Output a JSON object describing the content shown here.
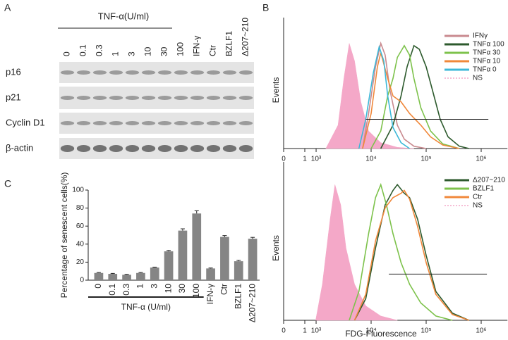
{
  "panels": {
    "a": "A",
    "b": "B",
    "c": "C"
  },
  "blot": {
    "group_label": "TNF-α(U/ml)",
    "lanes": [
      "0",
      "0.1",
      "0.3",
      "1",
      "3",
      "10",
      "30",
      "100",
      "IFN-γ",
      "Ctr",
      "BZLF1",
      "Δ207~210"
    ],
    "rows": [
      "p16",
      "p21",
      "Cyclin D1",
      "β-actin"
    ]
  },
  "chart_data": [
    {
      "type": "bar",
      "ylabel": "Percentage of senescent cells(%)",
      "group_label": "TNF-α (U/ml)",
      "categories": [
        "0",
        "0.1",
        "0.3",
        "1",
        "3",
        "10",
        "30",
        "100",
        "IFN-γ",
        "Ctr",
        "BZLF1",
        "Δ207~210"
      ],
      "values": [
        8,
        7,
        6,
        8,
        14,
        32,
        55,
        74,
        13,
        48,
        21,
        46
      ],
      "errors": [
        0.5,
        0.5,
        0.5,
        0.5,
        0.5,
        1,
        2,
        3,
        0.5,
        1.5,
        1,
        1.5
      ],
      "color": "#858585",
      "ylim": [
        0,
        100
      ],
      "yticks": [
        0,
        20,
        40,
        60,
        80,
        100
      ]
    },
    {
      "type": "line",
      "ylabel": "Events",
      "xscale": "biexponential",
      "xlim": [
        0,
        3000000
      ],
      "ylim": [
        0,
        100
      ],
      "xticks": [
        0,
        1,
        {
          "value": 1000,
          "label": "10³"
        },
        {
          "value": 10000,
          "label": "10⁴"
        },
        {
          "value": 100000,
          "label": "10⁵"
        },
        {
          "value": 1000000,
          "label": "10⁶"
        }
      ],
      "gate": {
        "x": [
          8000,
          1350000
        ],
        "y": 25
      },
      "series": [
        {
          "name": "IFNγ",
          "color": "#c98a8f",
          "x": [
            7000,
            9000,
            12000,
            15000,
            18000,
            22000,
            30000,
            40000,
            60000,
            100000
          ],
          "values": [
            0,
            30,
            70,
            90,
            80,
            50,
            20,
            8,
            2,
            0
          ]
        },
        {
          "name": "TNFα 100",
          "color": "#2d5a2d",
          "x": [
            15000,
            25000,
            35000,
            45000,
            60000,
            75000,
            100000,
            130000,
            180000,
            250000,
            400000,
            600000
          ],
          "values": [
            0,
            20,
            45,
            70,
            88,
            85,
            70,
            50,
            25,
            10,
            2,
            0
          ]
        },
        {
          "name": "TNFα 30",
          "color": "#7dc24b",
          "x": [
            10000,
            15000,
            20000,
            25000,
            30000,
            40000,
            50000,
            60000,
            80000,
            120000,
            200000,
            400000
          ],
          "values": [
            0,
            15,
            45,
            60,
            78,
            88,
            80,
            60,
            35,
            15,
            4,
            0
          ]
        },
        {
          "name": "TNFα 10",
          "color": "#f0883b",
          "x": [
            7000,
            10000,
            13000,
            15000,
            20000,
            25000,
            35000,
            50000,
            80000,
            120000,
            200000,
            400000
          ],
          "values": [
            0,
            30,
            70,
            82,
            60,
            45,
            40,
            30,
            20,
            10,
            3,
            0
          ]
        },
        {
          "name": "TNFα 0",
          "color": "#3cb8d8",
          "x": [
            6000,
            8000,
            11000,
            14000,
            17000,
            20000,
            25000,
            35000,
            50000
          ],
          "values": [
            0,
            25,
            65,
            87,
            75,
            45,
            18,
            5,
            0
          ]
        },
        {
          "name": "NS",
          "color": "#f4a8c8",
          "fill": true,
          "x": [
            1500,
            2500,
            3200,
            4000,
            5000,
            6500,
            9000,
            15000,
            30000,
            60000
          ],
          "values": [
            0,
            20,
            60,
            90,
            75,
            40,
            15,
            5,
            1,
            0
          ]
        }
      ]
    },
    {
      "type": "line",
      "ylabel": "Events",
      "xlabel": "FDG-Fluorescence",
      "xscale": "biexponential",
      "xlim": [
        0,
        3000000
      ],
      "ylim": [
        0,
        100
      ],
      "xticks": [
        0,
        1,
        {
          "value": 1000,
          "label": "10³"
        },
        {
          "value": 10000,
          "label": "10⁴"
        },
        {
          "value": 100000,
          "label": "10⁵"
        },
        {
          "value": 1000000,
          "label": "10⁶"
        }
      ],
      "gate": {
        "x": [
          21000,
          1270000
        ],
        "y": 32
      },
      "series": [
        {
          "name": "Δ207~210",
          "color": "#2d5a2d",
          "x": [
            5000,
            8000,
            12000,
            18000,
            25000,
            30000,
            40000,
            50000,
            70000,
            100000,
            150000,
            300000,
            600000
          ],
          "values": [
            0,
            15,
            50,
            80,
            90,
            94,
            88,
            85,
            70,
            45,
            20,
            5,
            0
          ]
        },
        {
          "name": "BZLF1",
          "color": "#7dc24b",
          "x": [
            4000,
            6000,
            9000,
            12000,
            15000,
            19000,
            25000,
            35000,
            50000,
            80000,
            150000,
            300000
          ],
          "values": [
            0,
            20,
            60,
            85,
            94,
            80,
            60,
            40,
            25,
            12,
            3,
            0
          ]
        },
        {
          "name": "Ctr",
          "color": "#f0883b",
          "x": [
            5000,
            8000,
            12000,
            18000,
            25000,
            35000,
            40000,
            50000,
            70000,
            100000,
            150000,
            300000,
            600000
          ],
          "values": [
            0,
            18,
            55,
            78,
            85,
            88,
            90,
            84,
            65,
            40,
            18,
            4,
            0
          ]
        },
        {
          "name": "NS",
          "color": "#f4a8c8",
          "fill": true,
          "x": [
            800,
            1300,
            1800,
            2200,
            2800,
            3500,
            5000,
            8000,
            15000,
            30000
          ],
          "values": [
            0,
            25,
            70,
            94,
            80,
            50,
            25,
            10,
            3,
            0
          ]
        }
      ]
    }
  ]
}
